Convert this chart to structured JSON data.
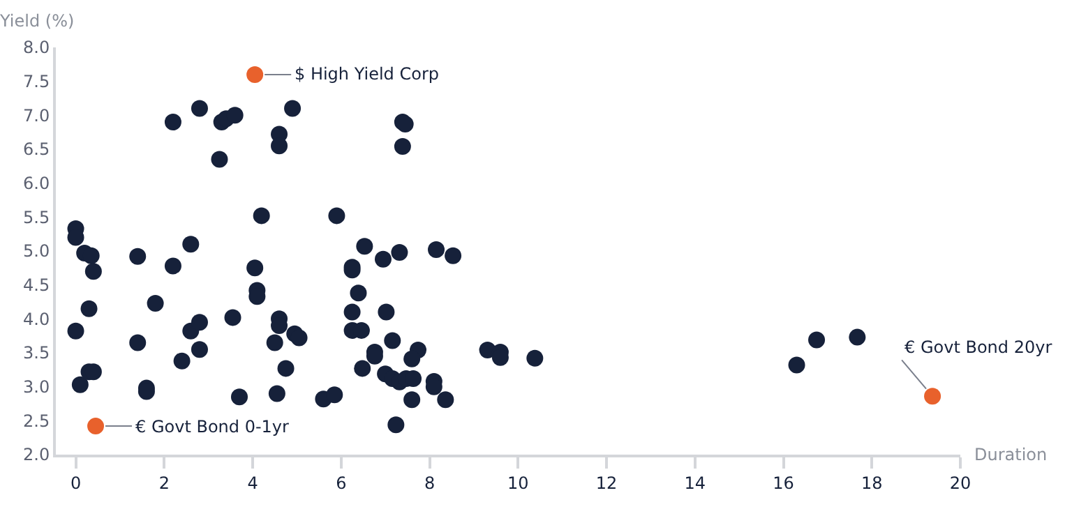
{
  "chart_data": {
    "type": "scatter",
    "xlabel": "Duration",
    "ylabel": "Yield (%)",
    "xlim": [
      -0.45,
      20
    ],
    "ylim": [
      2,
      8
    ],
    "xticks": [
      0,
      2,
      4,
      6,
      8,
      10,
      12,
      14,
      16,
      18,
      20
    ],
    "yticks": [
      {
        "value": 2,
        "label": "2.0"
      },
      {
        "value": 2.5,
        "label": "2.5"
      },
      {
        "value": 3,
        "label": "3.0"
      },
      {
        "value": 3.5,
        "label": "3.5"
      },
      {
        "value": 4,
        "label": "4.0"
      },
      {
        "value": 4.5,
        "label": "4.5"
      },
      {
        "value": 5,
        "label": "5.0"
      },
      {
        "value": 5.5,
        "label": "5.5"
      },
      {
        "value": 6,
        "label": "6.0"
      },
      {
        "value": 6.5,
        "label": "6.5"
      },
      {
        "value": 7,
        "label": "7.0"
      },
      {
        "value": 7.5,
        "label": "7.5"
      },
      {
        "value": 8,
        "label": "8.0"
      }
    ],
    "grid": false,
    "marker": "circle",
    "series": [
      {
        "color": "#16213a",
        "x": [
          0,
          0,
          0.2,
          0.35,
          0.4,
          0.3,
          0,
          0.1,
          0.3,
          0.4,
          1.4,
          1.4,
          1.6,
          1.6,
          1.8,
          2.2,
          2.2,
          2.4,
          2.6,
          2.6,
          2.8,
          2.8,
          2.8,
          3.25,
          3.3,
          3.4,
          3.6,
          3.55,
          3.7,
          4.05,
          4.1,
          4.1,
          4.2,
          4.5,
          4.55,
          4.6,
          4.6,
          4.6,
          4.6,
          4.75,
          4.9,
          4.95,
          5.05,
          5.6,
          5.85,
          5.9,
          7.39,
          7.45,
          7.39,
          6.53,
          6.25,
          6.25,
          6.39,
          6.25,
          7.02,
          6.25,
          6.46,
          7.16,
          6.95,
          7.32,
          8.15,
          8.53,
          6.76,
          6.76,
          7.74,
          7.6,
          6.48,
          7.0,
          7.16,
          7.32,
          7.47,
          7.63,
          8.1,
          8.1,
          7.6,
          8.36,
          7.24,
          9.31,
          9.6,
          9.6,
          10.38,
          16.3,
          16.75,
          17.67
        ],
        "values": [
          5.33,
          5.2,
          4.97,
          4.93,
          4.7,
          4.15,
          3.82,
          3.03,
          3.22,
          3.22,
          4.92,
          3.65,
          2.98,
          2.93,
          4.23,
          6.9,
          4.78,
          3.38,
          5.1,
          3.82,
          7.1,
          3.95,
          3.55,
          6.35,
          6.9,
          6.95,
          7.0,
          4.02,
          2.85,
          4.75,
          4.42,
          4.33,
          5.52,
          3.65,
          2.9,
          6.72,
          6.55,
          4.0,
          3.9,
          3.27,
          7.1,
          3.78,
          3.72,
          2.82,
          2.88,
          5.52,
          6.9,
          6.87,
          6.54,
          5.07,
          4.76,
          4.72,
          4.38,
          4.1,
          4.1,
          3.83,
          3.83,
          3.68,
          4.88,
          4.98,
          5.02,
          4.93,
          3.51,
          3.45,
          3.54,
          3.41,
          3.27,
          3.19,
          3.12,
          3.07,
          3.12,
          3.12,
          3.08,
          3.0,
          2.81,
          2.81,
          2.44,
          3.54,
          3.51,
          3.43,
          3.42,
          3.32,
          3.69,
          3.73
        ]
      },
      {
        "color": "#e8612c",
        "x": [
          0.45,
          4.05,
          19.37
        ],
        "values": [
          2.42,
          7.6,
          2.86
        ]
      }
    ],
    "annotations": [
      {
        "text": "$ High Yield Corp",
        "x": 4.05,
        "y": 7.6
      },
      {
        "text": "€ Govt Bond 0-1yr",
        "x": 0.45,
        "y": 2.42
      },
      {
        "text": "€ Govt Bond 20yr",
        "x": 19.37,
        "y": 2.86
      }
    ]
  }
}
